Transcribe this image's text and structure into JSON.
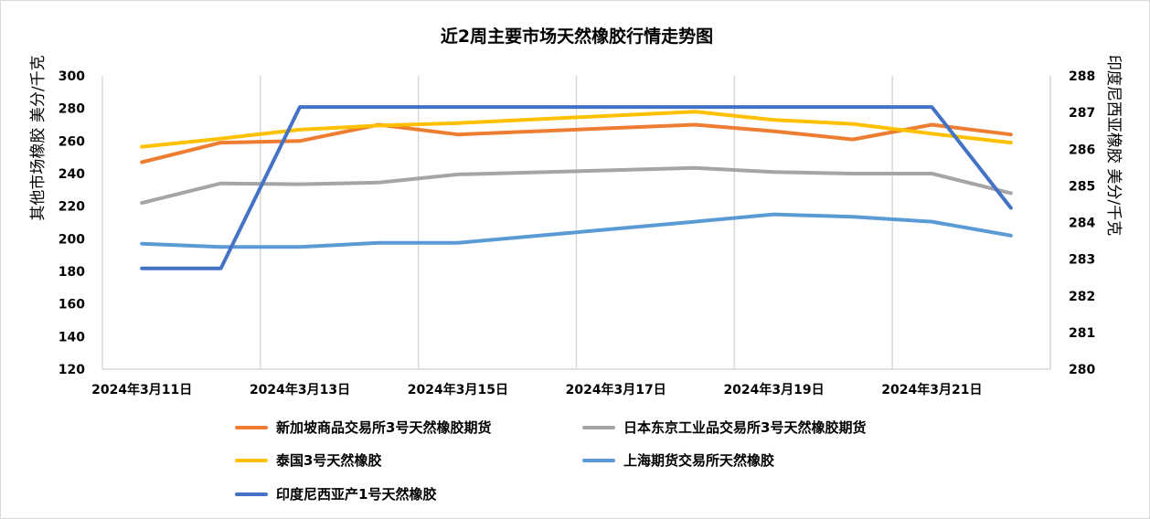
{
  "chart_data": {
    "type": "line",
    "title": "近2周主要市场天然橡胶行情走势图",
    "ylabel_left": "其他市场橡胶  美分/千克",
    "ylabel_right": "印度尼西亚橡胶  美分/千克",
    "ylim_left": [
      120,
      300
    ],
    "yticks_left": [
      120,
      140,
      160,
      180,
      200,
      220,
      240,
      260,
      280,
      300
    ],
    "ylim_right": [
      280,
      288
    ],
    "yticks_right": [
      280,
      281,
      282,
      283,
      284,
      285,
      286,
      287,
      288
    ],
    "x": [
      "2024年3月11日",
      "2024年3月12日",
      "2024年3月13日",
      "2024年3月14日",
      "2024年3月15日",
      "2024年3月18日",
      "2024年3月19日",
      "2024年3月20日",
      "2024年3月21日",
      "2024年3月22日"
    ],
    "x_tick_labels": [
      "2024年3月11日",
      "2024年3月13日",
      "2024年3月15日",
      "2024年3月17日",
      "2024年3月19日",
      "2024年3月21日"
    ],
    "grid": "vertical",
    "legend_position": "bottom",
    "series": [
      {
        "name": "新加坡商品交易所3号天然橡胶期货",
        "axis": "left",
        "color": "#ED7D31",
        "x": [
          "2024年3月11日",
          "2024年3月12日",
          "2024年3月13日",
          "2024年3月14日",
          "2024年3月15日",
          "2024年3月18日",
          "2024年3月19日",
          "2024年3月20日",
          "2024年3月21日",
          "2024年3月22日"
        ],
        "values": [
          247,
          259,
          260,
          270,
          264,
          270,
          266,
          261,
          270,
          264
        ]
      },
      {
        "name": "日本东京工业品交易所3号天然橡胶期货",
        "axis": "left",
        "color": "#A5A5A5",
        "x": [
          "2024年3月11日",
          "2024年3月12日",
          "2024年3月13日",
          "2024年3月14日",
          "2024年3月15日",
          "2024年3月18日",
          "2024年3月19日",
          "2024年3月20日",
          "2024年3月21日",
          "2024年3月22日"
        ],
        "values": [
          222,
          234,
          233.5,
          234.5,
          239.5,
          243.5,
          241,
          240,
          240,
          228
        ]
      },
      {
        "name": "泰国3号天然橡胶",
        "axis": "left",
        "color": "#FFC000",
        "x": [
          "2024年3月11日",
          "2024年3月12日",
          "2024年3月13日",
          "2024年3月14日",
          "2024年3月15日",
          "2024年3月18日",
          "2024年3月19日",
          "2024年3月20日",
          "2024年3月21日",
          "2024年3月22日"
        ],
        "values": [
          256.5,
          261.5,
          267,
          269.5,
          271,
          278,
          273,
          270.5,
          264.5,
          259
        ]
      },
      {
        "name": "上海期货交易所天然橡胶",
        "axis": "left",
        "color": "#5B9BD5",
        "x": [
          "2024年3月11日",
          "2024年3月12日",
          "2024年3月13日",
          "2024年3月14日",
          "2024年3月15日",
          "2024年3月18日",
          "2024年3月19日",
          "2024年3月20日",
          "2024年3月21日",
          "2024年3月22日"
        ],
        "values": [
          197,
          195,
          195,
          197.5,
          197.5,
          210.5,
          215,
          213.5,
          210.5,
          202
        ]
      },
      {
        "name": "印度尼西亚产1号天然橡胶",
        "axis": "right",
        "color": "#4472C4",
        "x": [
          "2024年3月11日",
          "2024年3月12日",
          "2024年3月13日",
          "2024年3月15日",
          "2024年3月18日",
          "2024年3月19日",
          "2024年3月20日",
          "2024年3月21日",
          "2024年3月22日"
        ],
        "values": [
          282.75,
          282.75,
          287.15,
          287.15,
          287.15,
          287.15,
          287.15,
          287.15,
          284.4
        ]
      }
    ]
  }
}
